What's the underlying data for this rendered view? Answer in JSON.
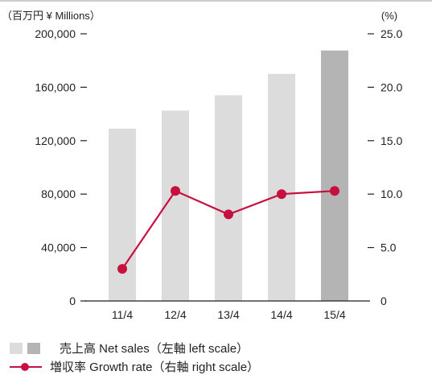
{
  "chart_data": {
    "type": "bar",
    "categories": [
      "11/4",
      "12/4",
      "13/4",
      "14/4",
      "15/4"
    ],
    "series": [
      {
        "name": "売上高 Net sales（左軸 left scale）",
        "type": "bar",
        "axis": "left",
        "values": [
          129000,
          142500,
          154000,
          170000,
          187500
        ],
        "colors": [
          "#dcdcdc",
          "#dcdcdc",
          "#dcdcdc",
          "#dcdcdc",
          "#b4b4b4"
        ]
      },
      {
        "name": "増収率 Growth rate（右軸 right scale）",
        "type": "line",
        "axis": "right",
        "values": [
          3.0,
          10.3,
          8.1,
          10.0,
          10.3
        ],
        "color": "#c8103e"
      }
    ],
    "left_axis": {
      "label": "（百万円 ¥ Millions）",
      "range": [
        0,
        200000
      ],
      "ticks": [
        "0",
        "40,000",
        "80,000",
        "120,000",
        "160,000",
        "200,000"
      ]
    },
    "right_axis": {
      "label": "(%)",
      "range": [
        0,
        25
      ],
      "ticks": [
        "0",
        "5.0",
        "10.0",
        "15.0",
        "20.0",
        "25.0"
      ]
    },
    "grid": false,
    "legend_position": "bottom-left"
  },
  "legend": {
    "bars_label": "売上高 Net sales（左軸 left scale）",
    "line_label": "増収率 Growth rate（右軸 right scale）",
    "bar_colors": [
      "#dcdcdc",
      "#b4b4b4"
    ],
    "line_color": "#c8103e"
  }
}
